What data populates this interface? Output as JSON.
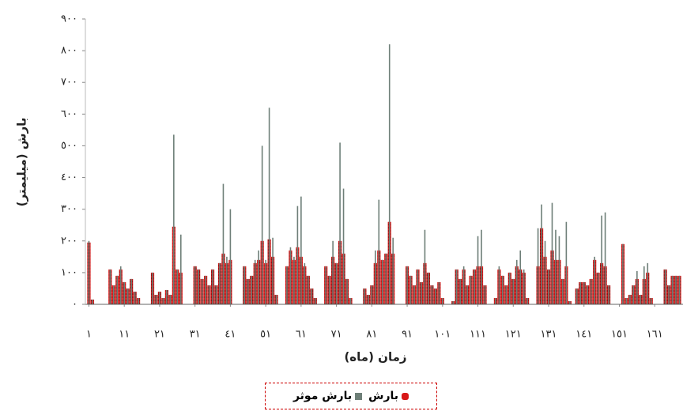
{
  "chart_data": {
    "type": "bar",
    "x_label": "زمان (ماه)",
    "y_label": "بارش (میلیمتر)",
    "x": [
      1,
      2,
      3,
      4,
      5,
      6,
      7,
      8,
      9,
      10,
      11,
      12,
      13,
      14,
      15,
      16,
      17,
      18,
      19,
      20,
      21,
      22,
      23,
      24,
      25,
      26,
      27,
      28,
      29,
      30,
      31,
      32,
      33,
      34,
      35,
      36,
      37,
      38,
      39,
      40,
      41,
      42,
      43,
      44,
      45,
      46,
      47,
      48,
      49,
      50,
      51,
      52,
      53,
      54,
      55,
      56,
      57,
      58,
      59,
      60,
      61,
      62,
      63,
      64,
      65,
      66,
      67,
      68,
      69,
      70,
      71,
      72,
      73,
      74,
      75,
      76,
      77,
      78,
      79,
      80,
      81,
      82,
      83,
      84,
      85,
      86,
      87,
      88,
      89,
      90,
      91,
      92,
      93,
      94,
      95,
      96,
      97,
      98,
      99,
      100,
      101,
      102,
      103,
      104,
      105,
      106,
      107,
      108,
      109,
      110,
      111,
      112,
      113,
      114,
      115,
      116,
      117,
      118,
      119,
      120,
      121,
      122,
      123,
      124,
      125,
      126,
      127,
      128,
      129,
      130,
      131,
      132,
      133,
      134,
      135,
      136,
      137,
      138,
      139,
      140,
      141,
      142,
      143,
      144,
      145,
      146,
      147,
      148,
      149,
      150,
      151,
      152,
      153,
      154,
      155,
      156,
      157,
      158,
      159,
      160,
      161,
      162,
      163,
      164,
      165,
      166,
      167,
      168
    ],
    "series": [
      {
        "name": "بارش",
        "color": "#d81818",
        "values": [
          195,
          15,
          0,
          0,
          0,
          0,
          110,
          60,
          90,
          110,
          70,
          50,
          80,
          40,
          20,
          0,
          0,
          0,
          100,
          30,
          40,
          20,
          45,
          30,
          245,
          110,
          100,
          0,
          0,
          0,
          120,
          110,
          80,
          90,
          60,
          110,
          60,
          130,
          160,
          130,
          140,
          0,
          0,
          0,
          120,
          80,
          90,
          130,
          140,
          200,
          130,
          205,
          150,
          30,
          0,
          0,
          120,
          170,
          140,
          180,
          150,
          120,
          90,
          50,
          20,
          0,
          0,
          120,
          90,
          150,
          130,
          200,
          160,
          80,
          20,
          0,
          0,
          0,
          50,
          30,
          60,
          130,
          170,
          140,
          160,
          260,
          160,
          0,
          0,
          0,
          120,
          90,
          60,
          110,
          70,
          130,
          100,
          60,
          50,
          70,
          20,
          0,
          0,
          10,
          110,
          80,
          110,
          60,
          90,
          110,
          120,
          120,
          60,
          0,
          0,
          20,
          110,
          90,
          60,
          100,
          80,
          120,
          110,
          100,
          20,
          0,
          0,
          120,
          240,
          150,
          110,
          170,
          140,
          140,
          80,
          120,
          10,
          0,
          50,
          70,
          70,
          60,
          80,
          140,
          100,
          130,
          120,
          60,
          0,
          0,
          0,
          190,
          20,
          30,
          60,
          80,
          30,
          80,
          100,
          20,
          0,
          0,
          0,
          110,
          60,
          90,
          90,
          90
        ]
      },
      {
        "name": "بارش موثر",
        "color": "#6e7f78",
        "values": [
          200,
          15,
          0,
          0,
          0,
          0,
          110,
          60,
          90,
          120,
          70,
          50,
          80,
          40,
          20,
          0,
          0,
          0,
          100,
          30,
          40,
          20,
          45,
          30,
          535,
          110,
          220,
          0,
          0,
          0,
          120,
          110,
          80,
          90,
          60,
          110,
          60,
          130,
          380,
          150,
          300,
          0,
          0,
          0,
          120,
          80,
          90,
          140,
          170,
          500,
          140,
          620,
          210,
          30,
          0,
          0,
          120,
          180,
          150,
          310,
          340,
          130,
          90,
          50,
          20,
          0,
          0,
          120,
          90,
          200,
          130,
          510,
          365,
          80,
          20,
          0,
          0,
          0,
          50,
          30,
          60,
          170,
          330,
          140,
          160,
          820,
          210,
          0,
          0,
          0,
          120,
          90,
          60,
          110,
          70,
          235,
          100,
          60,
          50,
          70,
          20,
          0,
          0,
          10,
          110,
          80,
          120,
          60,
          90,
          110,
          215,
          235,
          60,
          0,
          0,
          20,
          120,
          90,
          60,
          100,
          80,
          140,
          170,
          110,
          20,
          0,
          0,
          240,
          315,
          200,
          110,
          320,
          235,
          215,
          80,
          260,
          10,
          0,
          50,
          70,
          70,
          60,
          80,
          150,
          100,
          280,
          290,
          60,
          0,
          0,
          0,
          190,
          20,
          30,
          60,
          105,
          30,
          120,
          130,
          20,
          0,
          0,
          0,
          110,
          60,
          90,
          90,
          90
        ]
      }
    ],
    "xlim": [
      0,
      169
    ],
    "xticks": [
      {
        "value": 1,
        "label": "١"
      },
      {
        "value": 11,
        "label": "١١"
      },
      {
        "value": 21,
        "label": "٢١"
      },
      {
        "value": 31,
        "label": "٣١"
      },
      {
        "value": 41,
        "label": "٤١"
      },
      {
        "value": 51,
        "label": "٥١"
      },
      {
        "value": 61,
        "label": "٦١"
      },
      {
        "value": 71,
        "label": "٧١"
      },
      {
        "value": 81,
        "label": "٨١"
      },
      {
        "value": 91,
        "label": "٩١"
      },
      {
        "value": 101,
        "label": "١٠١"
      },
      {
        "value": 111,
        "label": "١١١"
      },
      {
        "value": 121,
        "label": "١٢١"
      },
      {
        "value": 131,
        "label": "١٣١"
      },
      {
        "value": 141,
        "label": "١٤١"
      },
      {
        "value": 151,
        "label": "١٥١"
      },
      {
        "value": 161,
        "label": "١٦١"
      }
    ],
    "ylim": [
      0,
      900
    ],
    "yticks": [
      {
        "value": 0,
        "label": "٠"
      },
      {
        "value": 100,
        "label": "١٠٠"
      },
      {
        "value": 200,
        "label": "٢٠٠"
      },
      {
        "value": 300,
        "label": "٣٠٠"
      },
      {
        "value": 400,
        "label": "٤٠٠"
      },
      {
        "value": 500,
        "label": "٥٠٠"
      },
      {
        "value": 600,
        "label": "٦٠٠"
      },
      {
        "value": 700,
        "label": "٧٠٠"
      },
      {
        "value": 800,
        "label": "٨٠٠"
      },
      {
        "value": 900,
        "label": "٩٠٠"
      }
    ]
  }
}
